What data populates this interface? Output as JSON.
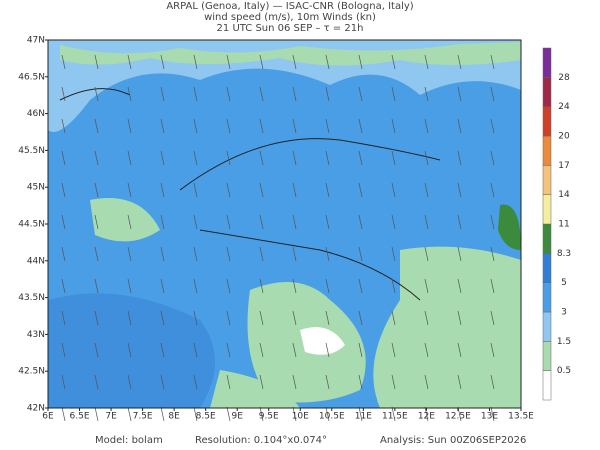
{
  "header": {
    "lines": [
      "ARPAL (Genoa, Italy)  —  ISAC-CNR (Bologna, Italy)",
      "wind speed (m/s), 10m Winds (kn)",
      "21 UTC Sun 06 SEP  –  τ = 21h"
    ]
  },
  "map": {
    "x_labels": [
      "6E",
      "6.5E",
      "7E",
      "7.5E",
      "8E",
      "8.5E",
      "9E",
      "9.5E",
      "10E",
      "10.5E",
      "11E",
      "11.5E",
      "12E",
      "12.5E",
      "13E",
      "13.5E"
    ],
    "y_labels": [
      "47N",
      "46.5N",
      "46N",
      "45.5N",
      "45N",
      "44.5N",
      "44N",
      "43.5N",
      "43N",
      "42.5N",
      "42N"
    ]
  },
  "colorbar": {
    "labels": [
      0.5,
      1.5,
      3,
      5,
      8.3,
      11,
      14,
      17,
      20,
      24,
      28
    ]
  },
  "footer": {
    "model": "Model: bolam",
    "resolution": "Resolution: 0.104°x0.074°",
    "analysis": "Analysis: Sun 00Z06SEP2026"
  }
}
